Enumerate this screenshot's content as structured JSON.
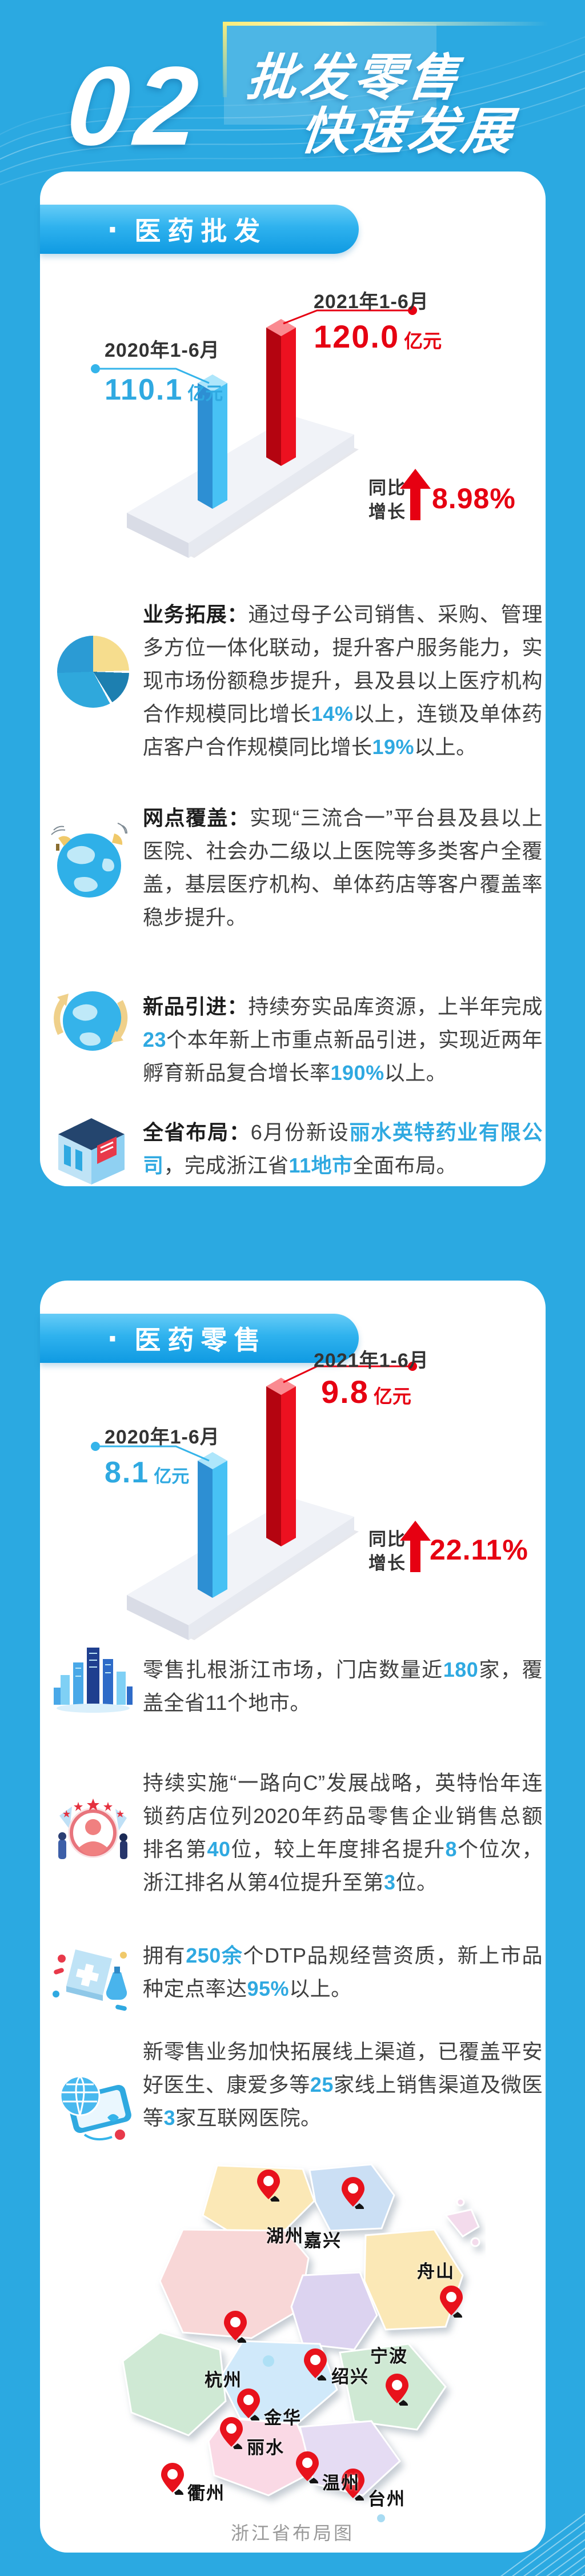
{
  "colors": {
    "background": "#2ba9e1",
    "accent_red": "#e60012",
    "accent_blue": "#2fa9e1",
    "badge_gradient_top": "#66ccf7",
    "badge_gradient_bottom": "#0f9ae2"
  },
  "header": {
    "number": "02",
    "title_line1": "批发零售",
    "title_line2": "快速发展"
  },
  "chart_data": [
    {
      "type": "bar",
      "title": "医药批发",
      "categories": [
        "2020年1-6月",
        "2021年1-6月"
      ],
      "values": [
        110.1,
        120.0
      ],
      "unit": "亿元",
      "growth_label": "同比增长",
      "growth_value": "8.98%",
      "legend_position": "none",
      "grid": false
    },
    {
      "type": "bar",
      "title": "医药零售",
      "categories": [
        "2020年1-6月",
        "2021年1-6月"
      ],
      "values": [
        8.1,
        9.8
      ],
      "unit": "亿元",
      "growth_label": "同比增长",
      "growth_value": "22.11%",
      "legend_position": "none",
      "grid": false
    }
  ],
  "wholesale": {
    "badge": {
      "bullet": "·",
      "label": "医药批发"
    },
    "chart": {
      "curr_period": "2021年1-6月",
      "curr_value": "120.0",
      "curr_unit": "亿元",
      "prev_period": "2020年1-6月",
      "prev_value": "110.1",
      "prev_unit": "亿元",
      "growth_line1": "同比",
      "growth_line2": "增长",
      "growth_value": "8.98%"
    },
    "paragraphs": [
      {
        "icon": "pie-chart-icon",
        "segments": [
          {
            "t": "业务拓展：",
            "b": 1
          },
          {
            "t": "通过母子公司销售、采购、管理多方位一体化联动，提升客户服务能力，实现市场份额稳步提升，县及县以上医疗机构合作规模同比增长"
          },
          {
            "t": "14%",
            "a": 1
          },
          {
            "t": "以上，连锁及单体药店客户合作规模同比增长"
          },
          {
            "t": "19%",
            "a": 1
          },
          {
            "t": "以上。"
          }
        ]
      },
      {
        "icon": "globe-network-icon",
        "segments": [
          {
            "t": "网点覆盖：",
            "b": 1
          },
          {
            "t": "实现“三流合一”平台县及县以上医院、社会办二级以上医院等多类客户全覆盖，基层医疗机构、单体药店等客户覆盖率稳步提升。"
          }
        ]
      },
      {
        "icon": "globe-arrows-icon",
        "segments": [
          {
            "t": "新品引进：",
            "b": 1
          },
          {
            "t": "持续夯实品库资源，上半年完成"
          },
          {
            "t": "23",
            "a": 1
          },
          {
            "t": "个本年新上市重点新品引进，实现近两年孵育新品复合增长率"
          },
          {
            "t": "190%",
            "a": 1
          },
          {
            "t": "以上。"
          }
        ]
      },
      {
        "icon": "building-icon",
        "segments": [
          {
            "t": "全省布局：",
            "b": 1
          },
          {
            "t": "6月份新设"
          },
          {
            "t": "丽水英特药业有限公司",
            "a": 1
          },
          {
            "t": "，完成浙江省"
          },
          {
            "t": "11地市",
            "a": 1
          },
          {
            "t": "全面布局。"
          }
        ]
      }
    ]
  },
  "retail": {
    "badge": {
      "bullet": "·",
      "label": "医药零售"
    },
    "chart": {
      "curr_period": "2021年1-6月",
      "curr_value": "9.8",
      "curr_unit": "亿元",
      "prev_period": "2020年1-6月",
      "prev_value": "8.1",
      "prev_unit": "亿元",
      "growth_line1": "同比",
      "growth_line2": "增长",
      "growth_value": "22.11%"
    },
    "paragraphs": [
      {
        "icon": "city-icon",
        "segments": [
          {
            "t": "零售扎根浙江市场，门店数量近"
          },
          {
            "t": "180",
            "a": 1
          },
          {
            "t": "家，覆盖全省11个地市。"
          }
        ]
      },
      {
        "icon": "avatar-stars-icon",
        "segments": [
          {
            "t": "持续实施“一路向C”发展战略，英特怡年连锁药店位列2020年药品零售企业销售总额排名第"
          },
          {
            "t": "40",
            "a": 1
          },
          {
            "t": "位，较上年度排名提升"
          },
          {
            "t": "8",
            "a": 1
          },
          {
            "t": "个位次，浙江排名从第4位提升至第"
          },
          {
            "t": "3",
            "a": 1
          },
          {
            "t": "位。"
          }
        ]
      },
      {
        "icon": "dtp-lab-icon",
        "segments": [
          {
            "t": "拥有"
          },
          {
            "t": "250余",
            "a": 1
          },
          {
            "t": "个DTP品规经营资质，新上市品种定点率达"
          },
          {
            "t": "95%",
            "a": 1
          },
          {
            "t": "以上。"
          }
        ]
      },
      {
        "icon": "online-channel-icon",
        "segments": [
          {
            "t": "新零售业务加快拓展线上渠道，已覆盖平安好医生、康爱多等"
          },
          {
            "t": "25",
            "a": 1
          },
          {
            "t": "家线上销售渠道及微医等"
          },
          {
            "t": "3",
            "a": 1
          },
          {
            "t": "家互联网医院。"
          }
        ]
      }
    ]
  },
  "map": {
    "caption": "浙江省布局图",
    "cities": [
      {
        "name": "湖州",
        "pin": [
          280,
          15
        ],
        "label": [
          296,
          106
        ]
      },
      {
        "name": "嘉兴",
        "pin": [
          428,
          28
        ],
        "label": [
          362,
          114
        ]
      },
      {
        "name": "舟山",
        "pin": [
          600,
          218
        ],
        "label": [
          560,
          168
        ]
      },
      {
        "name": "杭州",
        "pin": [
          222,
          262
        ],
        "label": [
          188,
          358
        ]
      },
      {
        "name": "绍兴",
        "pin": [
          362,
          328
        ],
        "label": [
          410,
          352
        ]
      },
      {
        "name": "宁波",
        "pin": [
          505,
          372
        ],
        "label": [
          478,
          316
        ]
      },
      {
        "name": "金华",
        "pin": [
          245,
          398
        ],
        "label": [
          292,
          424
        ]
      },
      {
        "name": "丽水",
        "pin": [
          215,
          448
        ],
        "label": [
          262,
          476
        ]
      },
      {
        "name": "衢州",
        "pin": [
          112,
          528
        ],
        "label": [
          158,
          556
        ]
      },
      {
        "name": "台州",
        "pin": [
          428,
          538
        ],
        "label": [
          474,
          566
        ]
      },
      {
        "name": "温州",
        "pin": [
          348,
          508
        ],
        "label": [
          394,
          538
        ]
      }
    ]
  }
}
